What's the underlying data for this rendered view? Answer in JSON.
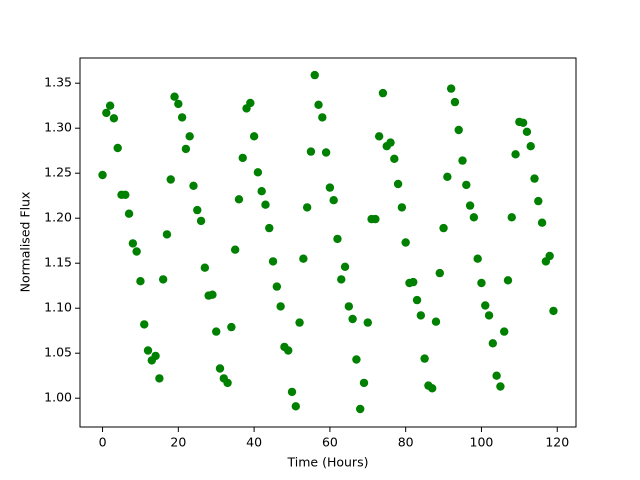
{
  "chart_data": {
    "type": "scatter",
    "xlabel": "Time (Hours)",
    "ylabel": "Normalised Flux",
    "color": "#008000",
    "xlim": [
      -5.95,
      124.95
    ],
    "ylim": [
      0.968,
      1.378
    ],
    "xticks": [
      0,
      20,
      40,
      60,
      80,
      100,
      120
    ],
    "yticks": [
      {
        "value": 1,
        "label": "1.00"
      },
      1.05,
      {
        "value": 1.1,
        "label": "1.10"
      },
      1.15,
      {
        "value": 1.2,
        "label": "1.20"
      },
      1.25,
      {
        "value": 1.3,
        "label": "1.30"
      },
      1.35
    ],
    "grid": false,
    "x": [
      0,
      1,
      2,
      3,
      4,
      5,
      6,
      7,
      8,
      9,
      10,
      11,
      12,
      13,
      14,
      15,
      16,
      17,
      18,
      19,
      20,
      21,
      22,
      23,
      24,
      25,
      26,
      27,
      28,
      29,
      30,
      31,
      32,
      33,
      34,
      35,
      36,
      37,
      38,
      39,
      40,
      41,
      42,
      43,
      44,
      45,
      46,
      47,
      48,
      49,
      50,
      51,
      52,
      53,
      54,
      55,
      56,
      57,
      58,
      59,
      60,
      61,
      62,
      63,
      64,
      65,
      66,
      67,
      68,
      69,
      70,
      71,
      72,
      73,
      74,
      75,
      76,
      77,
      78,
      79,
      80,
      81,
      82,
      83,
      84,
      85,
      86,
      87,
      88,
      89,
      90,
      91,
      92,
      93,
      94,
      95,
      96,
      97,
      98,
      99,
      100,
      101,
      102,
      103,
      104,
      105,
      106,
      107,
      108,
      109,
      110,
      111,
      112,
      113,
      114,
      115,
      116,
      117,
      118,
      119
    ],
    "values": [
      1.248,
      1.317,
      1.325,
      1.311,
      1.278,
      1.226,
      1.226,
      1.205,
      1.172,
      1.163,
      1.13,
      1.082,
      1.053,
      1.042,
      1.047,
      1.022,
      1.132,
      1.182,
      1.243,
      1.335,
      1.327,
      1.312,
      1.277,
      1.291,
      1.236,
      1.209,
      1.197,
      1.145,
      1.114,
      1.115,
      1.074,
      1.033,
      1.022,
      1.017,
      1.079,
      1.165,
      1.221,
      1.267,
      1.322,
      1.328,
      1.291,
      1.251,
      1.23,
      1.215,
      1.189,
      1.152,
      1.124,
      1.102,
      1.057,
      1.053,
      1.007,
      0.991,
      1.084,
      1.155,
      1.212,
      1.274,
      1.359,
      1.326,
      1.312,
      1.273,
      1.234,
      1.22,
      1.177,
      1.132,
      1.146,
      1.102,
      1.088,
      1.043,
      0.988,
      1.017,
      1.084,
      1.199,
      1.199,
      1.291,
      1.339,
      1.28,
      1.284,
      1.266,
      1.238,
      1.212,
      1.173,
      1.128,
      1.129,
      1.109,
      1.092,
      1.044,
      1.014,
      1.011,
      1.085,
      1.139,
      1.189,
      1.246,
      1.344,
      1.329,
      1.298,
      1.264,
      1.237,
      1.214,
      1.201,
      1.155,
      1.128,
      1.103,
      1.092,
      1.061,
      1.025,
      1.013,
      1.074,
      1.131,
      1.201,
      1.271,
      1.307,
      1.306,
      1.296,
      1.28,
      1.244,
      1.219,
      1.195,
      1.152,
      1.158,
      1.097
    ]
  }
}
